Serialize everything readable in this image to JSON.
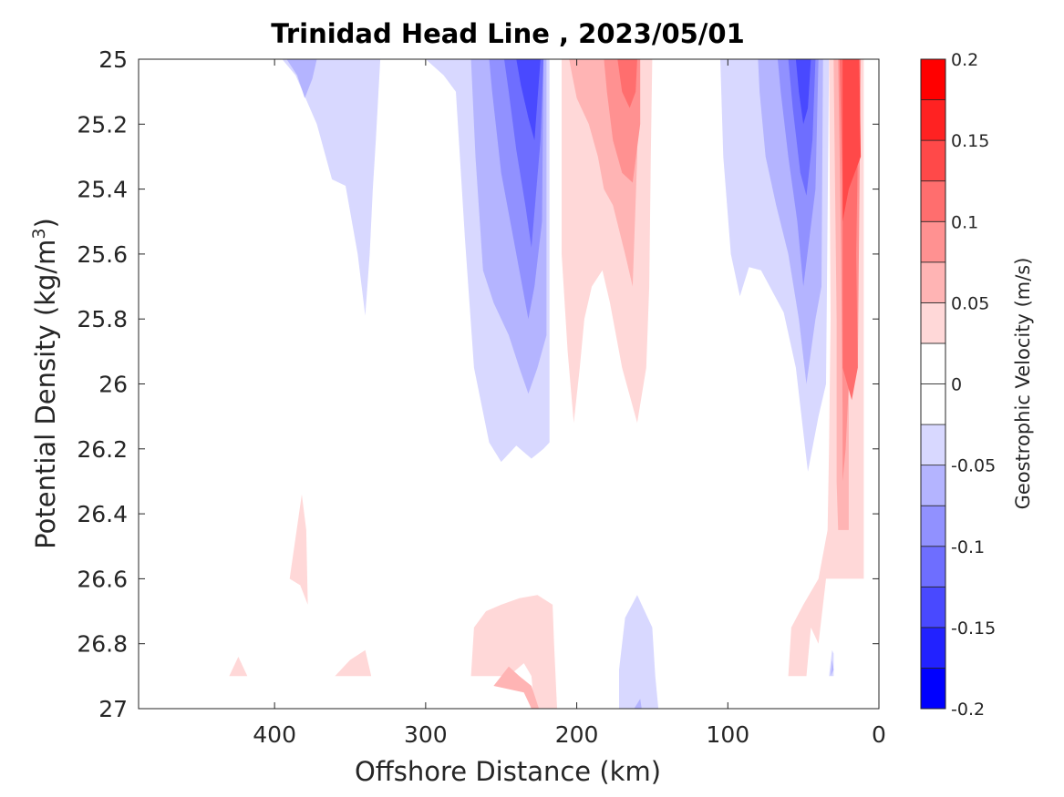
{
  "chart_data": {
    "type": "contour",
    "title": "Trinidad Head Line , 2023/05/01",
    "xlabel": "Offshore Distance (km)",
    "ylabel": "Potential Density (kg/m",
    "ylabel_sup": "3",
    "ylabel_close": ")",
    "colorbar_label": "Geostrophic Velocity (m/s)",
    "xlim": [
      490,
      0
    ],
    "ylim": [
      25,
      27
    ],
    "x_reversed": true,
    "y_reversed": true,
    "x_ticks": [
      400,
      300,
      200,
      100,
      0
    ],
    "x_tick_labels": [
      "400",
      "300",
      "200",
      "100",
      "0"
    ],
    "y_ticks": [
      25,
      25.2,
      25.4,
      25.6,
      25.8,
      26,
      26.2,
      26.4,
      26.6,
      26.8,
      27
    ],
    "y_tick_labels": [
      "25",
      "25.2",
      "25.4",
      "25.6",
      "25.8",
      "26",
      "26.2",
      "26.4",
      "26.6",
      "26.8",
      "27"
    ],
    "colorbar": {
      "min": -0.2,
      "max": 0.2,
      "levels": [
        -0.2,
        -0.175,
        -0.15,
        -0.125,
        -0.1,
        -0.075,
        -0.05,
        -0.025,
        0,
        0.025,
        0.05,
        0.075,
        0.1,
        0.125,
        0.15,
        0.175,
        0.2
      ],
      "colors": [
        "#0000ff",
        "#2222ff",
        "#4949ff",
        "#6e6eff",
        "#9191ff",
        "#b4b4ff",
        "#d8d8ff",
        "#ffffff",
        "#ffffff",
        "#ffd8d8",
        "#ffb4b4",
        "#ff9191",
        "#ff6e6e",
        "#ff4949",
        "#ff2222",
        "#ff0000"
      ],
      "ticks": [
        -0.2,
        -0.15,
        -0.1,
        -0.05,
        0,
        0.05,
        0.1,
        0.15,
        0.2
      ],
      "tick_labels": [
        "-0.2",
        "-0.15",
        "-0.1",
        "-0.05",
        "0",
        "0.05",
        "0.1",
        "0.15",
        "0.2"
      ]
    },
    "regions": [
      {
        "name": "neg-1-400km",
        "v": -0.03,
        "pts": [
          [
            397,
            25
          ],
          [
            330,
            25
          ],
          [
            333,
            25.25
          ],
          [
            335,
            25.4
          ],
          [
            337,
            25.6
          ],
          [
            340,
            25.79
          ],
          [
            345,
            25.6
          ],
          [
            353,
            25.39
          ],
          [
            362,
            25.37
          ],
          [
            372,
            25.2
          ],
          [
            386,
            25.05
          ],
          [
            395,
            25
          ]
        ]
      },
      {
        "name": "neg-2-390km",
        "v": -0.06,
        "pts": [
          [
            396,
            25
          ],
          [
            372,
            25
          ],
          [
            375,
            25.06
          ],
          [
            380,
            25.12
          ],
          [
            385,
            25.05
          ],
          [
            392,
            25
          ]
        ]
      },
      {
        "name": "neg-1-250km",
        "v": -0.03,
        "pts": [
          [
            300,
            25
          ],
          [
            218,
            25
          ],
          [
            218,
            26.18
          ],
          [
            222,
            26.2
          ],
          [
            230,
            26.23
          ],
          [
            240,
            26.19
          ],
          [
            250,
            26.24
          ],
          [
            258,
            26.18
          ],
          [
            268,
            25.95
          ],
          [
            274,
            25.55
          ],
          [
            280,
            25.1
          ],
          [
            288,
            25.05
          ]
        ]
      },
      {
        "name": "neg-2-250km",
        "v": -0.06,
        "pts": [
          [
            270,
            25
          ],
          [
            220,
            25
          ],
          [
            220,
            25.85
          ],
          [
            226,
            25.95
          ],
          [
            232,
            26.03
          ],
          [
            238,
            25.95
          ],
          [
            245,
            25.85
          ],
          [
            255,
            25.75
          ],
          [
            262,
            25.65
          ],
          [
            267,
            25.3
          ]
        ]
      },
      {
        "name": "neg-3-250km",
        "v": -0.09,
        "pts": [
          [
            258,
            25
          ],
          [
            222,
            25
          ],
          [
            223,
            25.5
          ],
          [
            228,
            25.7
          ],
          [
            232,
            25.8
          ],
          [
            236,
            25.7
          ],
          [
            242,
            25.55
          ],
          [
            250,
            25.35
          ],
          [
            256,
            25.1
          ]
        ]
      },
      {
        "name": "neg-4-230km",
        "v": -0.115,
        "pts": [
          [
            248,
            25
          ],
          [
            222,
            25
          ],
          [
            224,
            25.25
          ],
          [
            230,
            25.58
          ],
          [
            234,
            25.45
          ],
          [
            240,
            25.28
          ],
          [
            245,
            25.1
          ]
        ]
      },
      {
        "name": "neg-5-230km",
        "v": -0.14,
        "pts": [
          [
            240,
            25
          ],
          [
            224,
            25
          ],
          [
            228,
            25.25
          ],
          [
            232,
            25.18
          ],
          [
            237,
            25.08
          ]
        ]
      },
      {
        "name": "pos-1-200km",
        "v": 0.035,
        "pts": [
          [
            210,
            25
          ],
          [
            150,
            25
          ],
          [
            151,
            25.3
          ],
          [
            152,
            25.7
          ],
          [
            154,
            25.95
          ],
          [
            160,
            26.12
          ],
          [
            170,
            25.95
          ],
          [
            178,
            25.75
          ],
          [
            183,
            25.65
          ],
          [
            190,
            25.7
          ],
          [
            195,
            25.8
          ],
          [
            198,
            25.95
          ],
          [
            202,
            26.12
          ],
          [
            206,
            25.9
          ],
          [
            210,
            25.6
          ]
        ]
      },
      {
        "name": "pos-2-200km",
        "v": 0.06,
        "pts": [
          [
            205,
            25
          ],
          [
            160,
            25
          ],
          [
            160,
            25.3
          ],
          [
            163,
            25.7
          ],
          [
            168,
            25.6
          ],
          [
            176,
            25.45
          ],
          [
            182,
            25.4
          ],
          [
            186,
            25.3
          ],
          [
            192,
            25.2
          ],
          [
            200,
            25.12
          ],
          [
            203,
            25.05
          ]
        ]
      },
      {
        "name": "pos-3-170km",
        "v": 0.085,
        "pts": [
          [
            182,
            25
          ],
          [
            158,
            25
          ],
          [
            158,
            25.2
          ],
          [
            163,
            25.38
          ],
          [
            170,
            25.35
          ],
          [
            176,
            25.25
          ],
          [
            180,
            25.1
          ]
        ]
      },
      {
        "name": "pos-4-170km",
        "v": 0.11,
        "pts": [
          [
            173,
            25
          ],
          [
            160,
            25
          ],
          [
            161,
            25.1
          ],
          [
            165,
            25.15
          ],
          [
            170,
            25.1
          ]
        ]
      },
      {
        "name": "neg-1-60km",
        "v": -0.03,
        "pts": [
          [
            105,
            25
          ],
          [
            33,
            25
          ],
          [
            35,
            26
          ],
          [
            40,
            26.1
          ],
          [
            47,
            26.27
          ],
          [
            55,
            25.95
          ],
          [
            63,
            25.78
          ],
          [
            78,
            25.65
          ],
          [
            86,
            25.64
          ],
          [
            92,
            25.73
          ],
          [
            98,
            25.6
          ],
          [
            103,
            25.3
          ]
        ]
      },
      {
        "name": "neg-2-60km",
        "v": -0.06,
        "pts": [
          [
            80,
            25
          ],
          [
            37,
            25
          ],
          [
            38,
            25.7
          ],
          [
            42,
            25.8
          ],
          [
            48,
            26
          ],
          [
            53,
            25.8
          ],
          [
            60,
            25.6
          ],
          [
            68,
            25.45
          ],
          [
            75,
            25.3
          ],
          [
            79,
            25.1
          ]
        ]
      },
      {
        "name": "neg-3-60km",
        "v": -0.09,
        "pts": [
          [
            67,
            25
          ],
          [
            40,
            25
          ],
          [
            42,
            25.4
          ],
          [
            46,
            25.55
          ],
          [
            50,
            25.7
          ],
          [
            54,
            25.5
          ],
          [
            60,
            25.3
          ],
          [
            65,
            25.1
          ]
        ]
      },
      {
        "name": "neg-4-50km",
        "v": -0.115,
        "pts": [
          [
            60,
            25
          ],
          [
            42,
            25
          ],
          [
            44,
            25.25
          ],
          [
            48,
            25.42
          ],
          [
            52,
            25.35
          ],
          [
            57,
            25.15
          ]
        ]
      },
      {
        "name": "neg-5-50km",
        "v": -0.14,
        "pts": [
          [
            55,
            25
          ],
          [
            45,
            25
          ],
          [
            47,
            25.15
          ],
          [
            50,
            25.2
          ],
          [
            53,
            25.1
          ]
        ]
      },
      {
        "name": "pos-1-coast",
        "v": 0.035,
        "pts": [
          [
            33,
            25
          ],
          [
            32,
            25.8
          ],
          [
            33,
            26.2
          ],
          [
            34,
            26.45
          ],
          [
            40,
            26.6
          ],
          [
            50,
            26.68
          ],
          [
            58,
            26.75
          ],
          [
            60,
            26.9
          ],
          [
            48,
            26.9
          ],
          [
            45,
            26.75
          ],
          [
            40,
            26.8
          ],
          [
            35,
            26.6
          ],
          [
            30,
            26.6
          ],
          [
            20,
            26.6
          ],
          [
            10,
            26.6
          ],
          [
            10,
            25
          ]
        ]
      },
      {
        "name": "pos-2-coast",
        "v": 0.06,
        "pts": [
          [
            30,
            25
          ],
          [
            28,
            25.8
          ],
          [
            28,
            26.3
          ],
          [
            27,
            26.45
          ],
          [
            20,
            26.45
          ],
          [
            20,
            25
          ]
        ]
      },
      {
        "name": "pos-3-coast",
        "v": 0.085,
        "pts": [
          [
            27,
            25
          ],
          [
            25,
            25.6
          ],
          [
            24,
            26.1
          ],
          [
            24,
            26.3
          ],
          [
            22,
            26.2
          ],
          [
            20,
            26
          ],
          [
            14,
            25.95
          ],
          [
            12,
            25
          ],
          [
            20,
            25
          ]
        ]
      },
      {
        "name": "pos-4-coast",
        "v": 0.11,
        "pts": [
          [
            26,
            25
          ],
          [
            24,
            25.4
          ],
          [
            24,
            25.95
          ],
          [
            18,
            26.05
          ],
          [
            14,
            25.95
          ],
          [
            15,
            25.6
          ],
          [
            13,
            25
          ]
        ]
      },
      {
        "name": "pos-5-coast",
        "v": 0.135,
        "pts": [
          [
            24,
            25
          ],
          [
            24,
            25.5
          ],
          [
            20,
            25.4
          ],
          [
            12,
            25.3
          ],
          [
            13,
            25
          ]
        ]
      },
      {
        "name": "pos-deep-380km",
        "v": 0.03,
        "pts": [
          [
            390,
            26.6
          ],
          [
            382,
            26.34
          ],
          [
            379,
            26.45
          ],
          [
            378,
            26.68
          ],
          [
            383,
            26.62
          ]
        ]
      },
      {
        "name": "pos-deep-420km",
        "v": 0.03,
        "pts": [
          [
            430,
            26.9
          ],
          [
            418,
            26.9
          ],
          [
            424,
            26.84
          ]
        ]
      },
      {
        "name": "pos-deep-350km",
        "v": 0.03,
        "pts": [
          [
            360,
            26.9
          ],
          [
            336,
            26.9
          ],
          [
            340,
            26.82
          ],
          [
            350,
            26.85
          ]
        ]
      },
      {
        "name": "pos-deep-240km",
        "v": 0.035,
        "pts": [
          [
            270,
            26.9
          ],
          [
            268,
            26.75
          ],
          [
            260,
            26.7
          ],
          [
            250,
            26.68
          ],
          [
            238,
            26.66
          ],
          [
            226,
            26.65
          ],
          [
            216,
            26.68
          ],
          [
            215,
            26.8
          ],
          [
            213,
            27
          ],
          [
            228,
            27
          ],
          [
            230,
            26.9
          ],
          [
            235,
            26.86
          ],
          [
            245,
            26.9
          ],
          [
            255,
            26.9
          ],
          [
            262,
            26.9
          ]
        ]
      },
      {
        "name": "pos-deep-240km-b",
        "v": 0.06,
        "pts": [
          [
            255,
            26.93
          ],
          [
            245,
            26.87
          ],
          [
            238,
            26.9
          ],
          [
            230,
            26.93
          ],
          [
            225,
            27
          ],
          [
            230,
            27
          ],
          [
            235,
            26.95
          ]
        ]
      },
      {
        "name": "neg-deep-160km",
        "v": -0.03,
        "pts": [
          [
            172,
            27
          ],
          [
            172,
            26.88
          ],
          [
            168,
            26.72
          ],
          [
            160,
            26.65
          ],
          [
            150,
            26.75
          ],
          [
            148,
            26.9
          ],
          [
            146,
            27
          ]
        ]
      },
      {
        "name": "neg-deep-160km-b",
        "v": -0.055,
        "pts": [
          [
            162,
            27
          ],
          [
            158,
            26.97
          ],
          [
            157,
            27
          ]
        ]
      },
      {
        "name": "neg-deep-30km",
        "v": -0.05,
        "pts": [
          [
            33,
            26.9
          ],
          [
            30,
            26.9
          ],
          [
            30,
            26.83
          ],
          [
            31,
            26.82
          ]
        ]
      },
      {
        "name": "neg-deep-30km-b",
        "v": -0.075,
        "pts": [
          [
            32,
            26.9
          ],
          [
            30,
            26.88
          ],
          [
            31,
            26.85
          ]
        ]
      }
    ]
  }
}
